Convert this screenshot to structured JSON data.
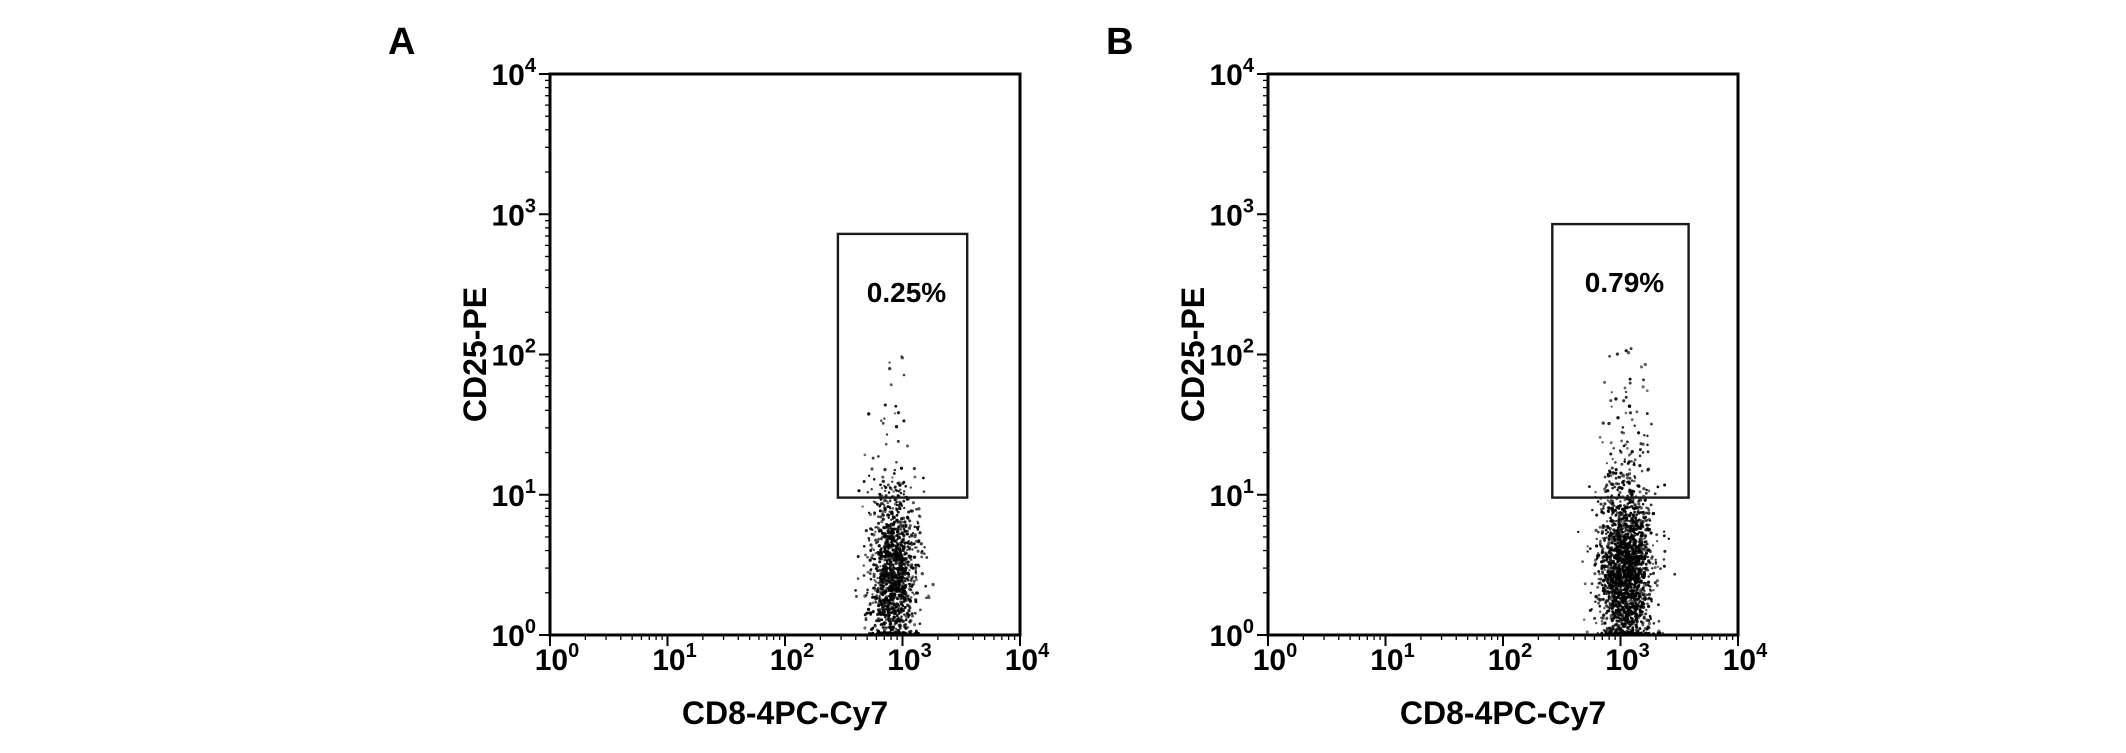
{
  "figure": {
    "panel_labels": [
      "A",
      "B"
    ],
    "background_color": "#ffffff",
    "axis_color": "#000000",
    "text_color": "#000000"
  },
  "chart_data": [
    {
      "type": "scatter",
      "panel_label": "A",
      "xlabel": "CD8-4PC-Cy7",
      "ylabel": "CD25-PE",
      "x_scale": "log",
      "y_scale": "log",
      "xlim": [
        1,
        10000
      ],
      "ylim": [
        1,
        10000
      ],
      "x_tick_labels": [
        "10^0",
        "10^1",
        "10^2",
        "10^3",
        "10^4"
      ],
      "y_tick_labels": [
        "10^0",
        "10^1",
        "10^2",
        "10^3",
        "10^4"
      ],
      "x_tick_exponents": [
        0,
        1,
        2,
        3,
        4
      ],
      "y_tick_exponents": [
        0,
        1,
        2,
        3,
        4
      ],
      "grid": false,
      "legend": "none",
      "gate": {
        "label": "0.25%",
        "x_log10": [
          2.45,
          3.55
        ],
        "y_log10": [
          0.98,
          2.86
        ]
      },
      "population": {
        "description": "single dense CD8+ population, mostly CD25-negative, below the gate",
        "n_points": 1400,
        "x_log10_mean": 2.92,
        "x_log10_sd": 0.1,
        "y_log10_mean": 0.42,
        "y_log10_sd": 0.3,
        "gate_tail_fraction": 0.03,
        "tail_y_log10_max": 2.0,
        "seed": 42
      },
      "point_color": "#000000"
    },
    {
      "type": "scatter",
      "panel_label": "B",
      "xlabel": "CD8-4PC-Cy7",
      "ylabel": "CD25-PE",
      "x_scale": "log",
      "y_scale": "log",
      "xlim": [
        1,
        10000
      ],
      "ylim": [
        1,
        10000
      ],
      "x_tick_labels": [
        "10^0",
        "10^1",
        "10^2",
        "10^3",
        "10^4"
      ],
      "y_tick_labels": [
        "10^0",
        "10^1",
        "10^2",
        "10^3",
        "10^4"
      ],
      "x_tick_exponents": [
        0,
        1,
        2,
        3,
        4
      ],
      "y_tick_exponents": [
        0,
        1,
        2,
        3,
        4
      ],
      "grid": false,
      "legend": "none",
      "gate": {
        "label": "0.79%",
        "x_log10": [
          2.42,
          3.58
        ],
        "y_log10": [
          0.98,
          2.93
        ]
      },
      "population": {
        "description": "single dense CD8+ population, mostly CD25-negative, slightly more CD25+ events in gate",
        "n_points": 2200,
        "x_log10_mean": 3.04,
        "x_log10_sd": 0.11,
        "y_log10_mean": 0.45,
        "y_log10_sd": 0.32,
        "gate_tail_fraction": 0.045,
        "tail_y_log10_max": 2.05,
        "seed": 1907
      },
      "point_color": "#000000"
    }
  ]
}
